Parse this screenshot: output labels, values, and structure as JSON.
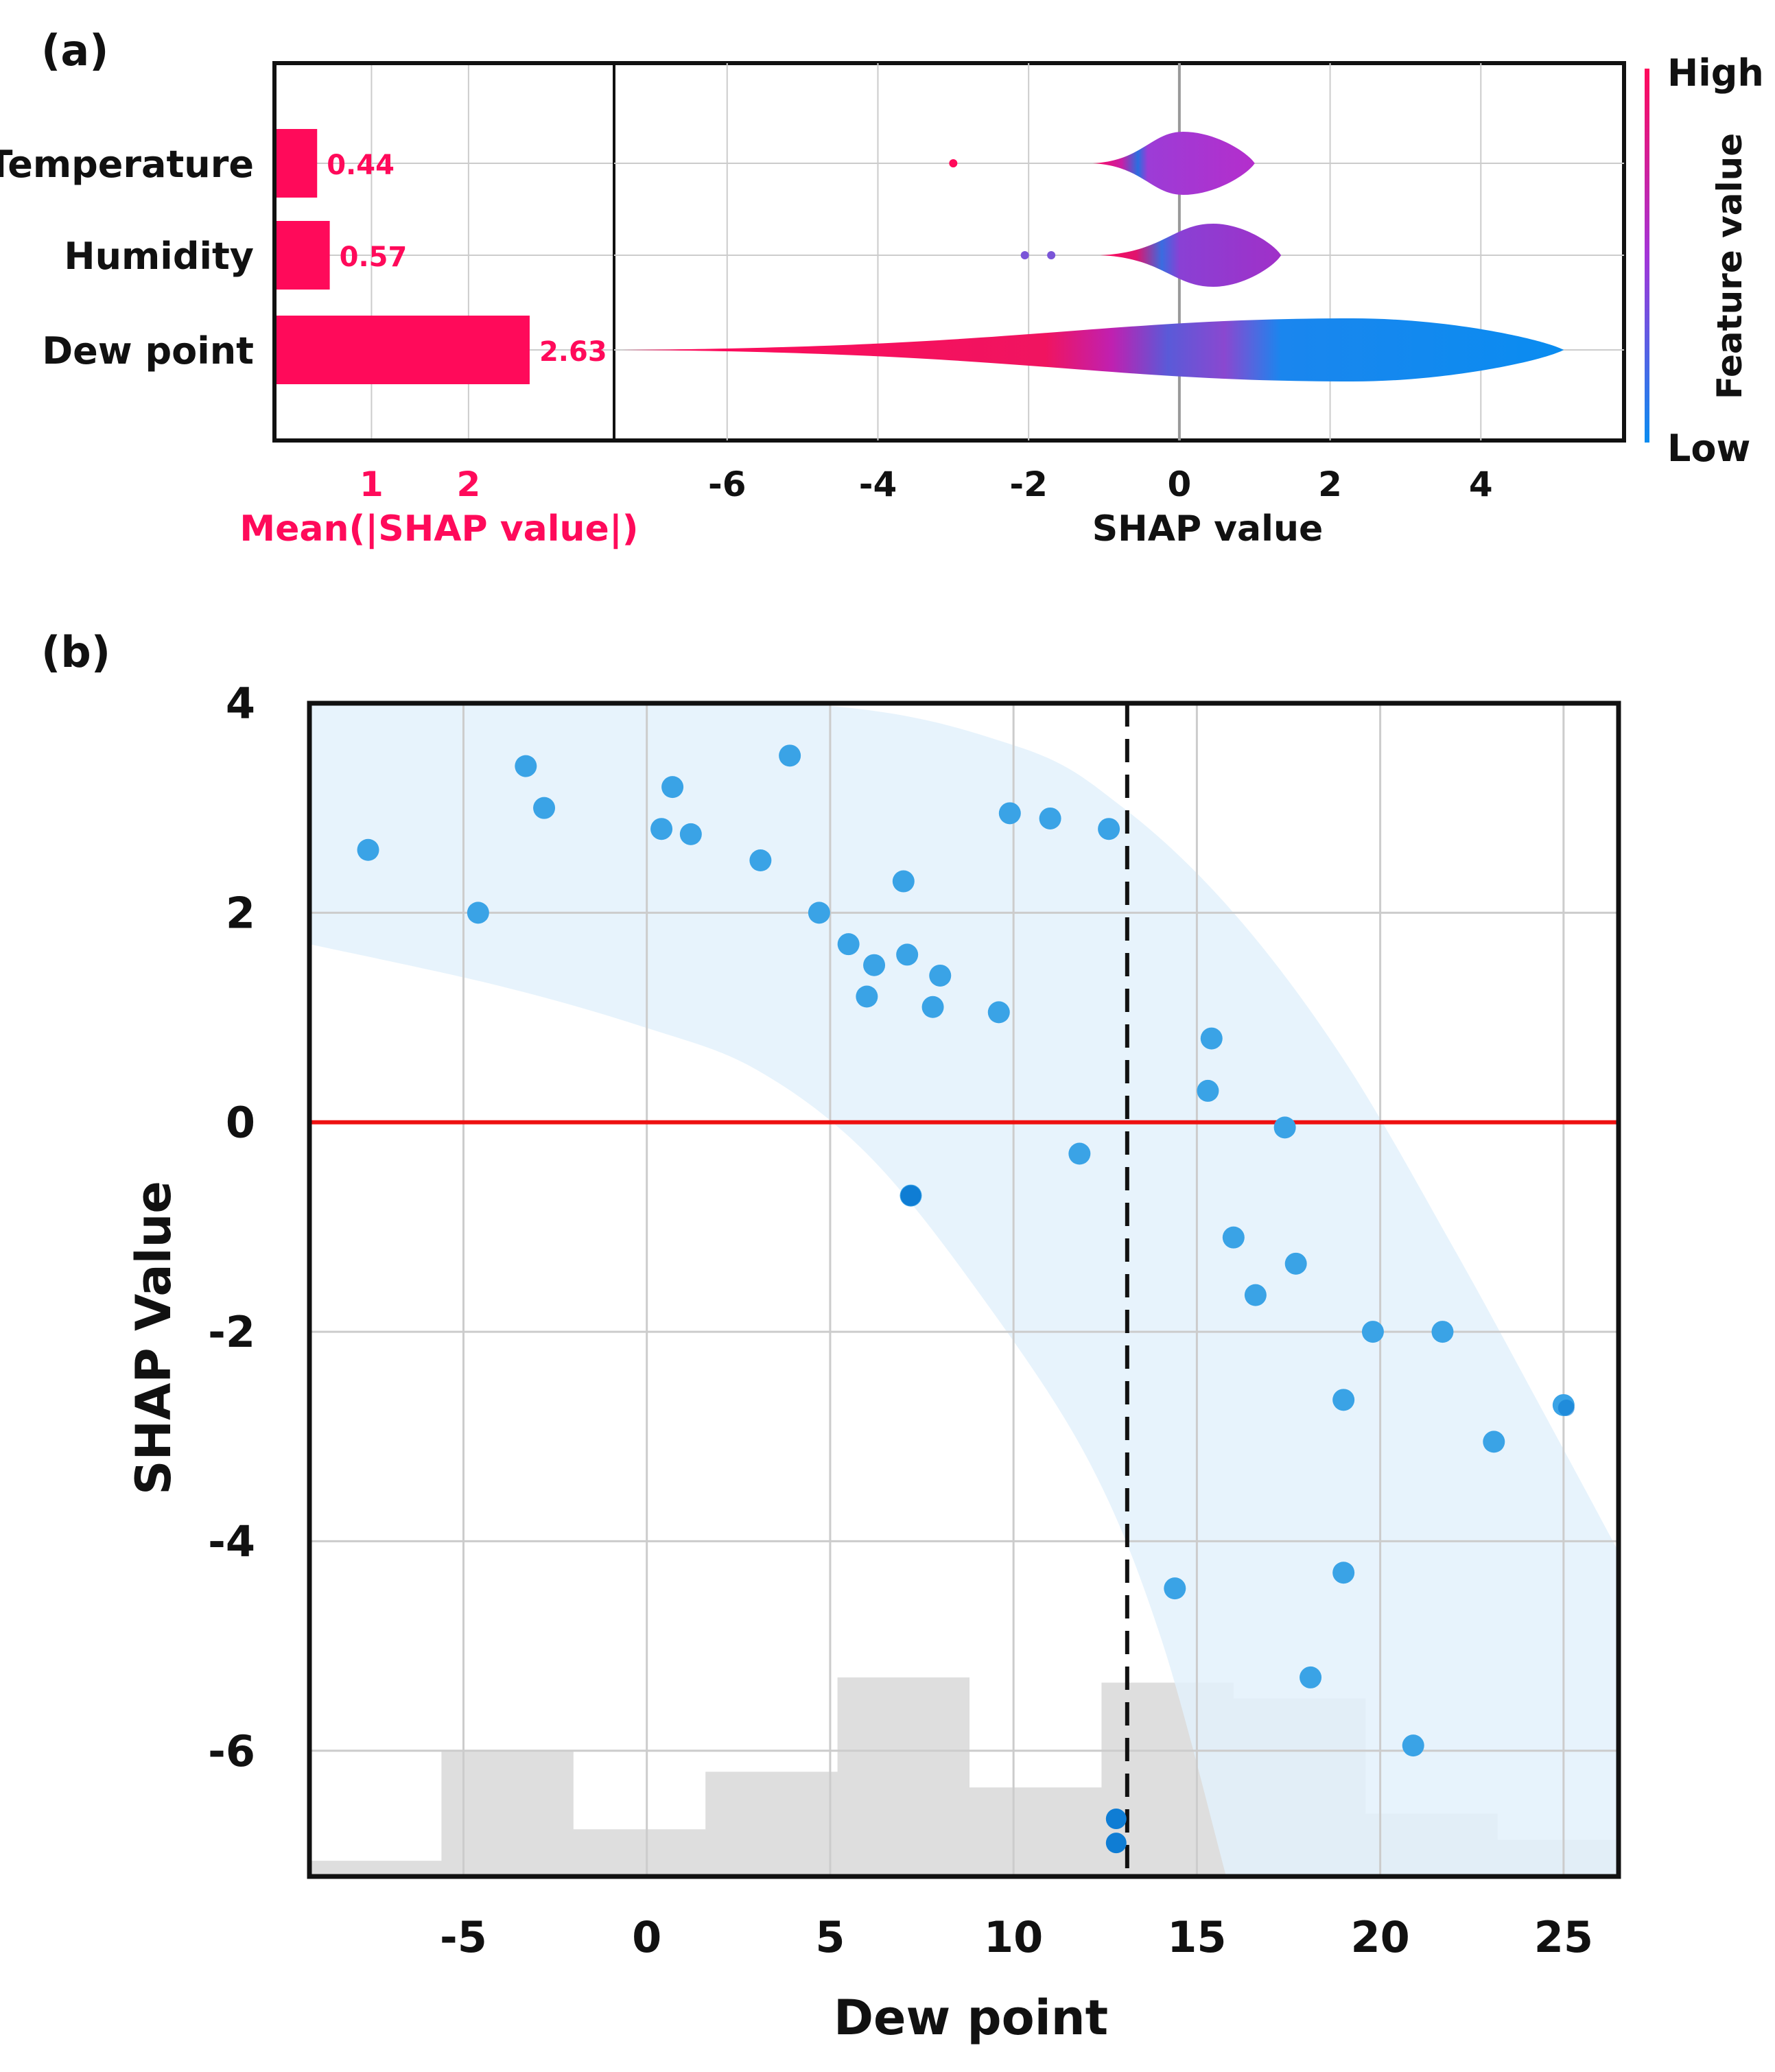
{
  "panel_labels": {
    "a": "(a)",
    "b": "(b)"
  },
  "colors": {
    "pink": "#ff0a5a",
    "magenta_mid": "#b428d2",
    "blue": "#0a8cf0",
    "scatter_point": "#3aa3e6",
    "scatter_dark": "#0f7dd4",
    "band": "#e3f1fb",
    "hist": "#dedede",
    "zero_line": "#ee1111",
    "grid": "#cccccc"
  },
  "chart_data": [
    {
      "id": "a-bar",
      "type": "bar",
      "orientation": "horizontal",
      "title": "",
      "categories": [
        "Temperature",
        "Humidity",
        "Dew point"
      ],
      "values": [
        0.44,
        0.57,
        2.63
      ],
      "value_labels": [
        "0.44",
        "0.57",
        "2.63"
      ],
      "xlabel": "Mean(|SHAP value|)",
      "xticks": [
        1,
        2
      ],
      "xtick_labels": [
        "1",
        "2"
      ],
      "xlim": [
        0,
        3.5
      ]
    },
    {
      "id": "a-violin",
      "type": "violin",
      "title": "",
      "xlabel": "SHAP value",
      "xlim": [
        -7.5,
        5.9
      ],
      "xticks": [
        -6,
        -4,
        -2,
        0,
        2,
        4
      ],
      "xtick_labels": [
        "-6",
        "-4",
        "-2",
        "0",
        "2",
        "4"
      ],
      "colorbar": {
        "label": "Feature value",
        "high": "High",
        "low": "Low"
      },
      "features": [
        {
          "name": "Temperature",
          "min": -1.15,
          "max": 1.0,
          "peak": 0.05,
          "outliers": [
            -3.0
          ]
        },
        {
          "name": "Humidity",
          "min": -1.05,
          "max": 1.35,
          "peak": 0.45,
          "outliers": [
            -2.05,
            -1.7
          ]
        },
        {
          "name": "Dew point",
          "min": -7.4,
          "max": 5.1,
          "peak": 2.3,
          "outliers": []
        }
      ]
    },
    {
      "id": "b-dependence",
      "type": "scatter",
      "title": "",
      "xlabel": "Dew point",
      "ylabel": "SHAP Value",
      "xlim": [
        -9.2,
        26.5
      ],
      "ylim": [
        -7.2,
        4.0
      ],
      "xticks": [
        -5,
        0,
        5,
        10,
        15,
        20,
        25
      ],
      "xtick_labels": [
        "-5",
        "0",
        "5",
        "10",
        "15",
        "20",
        "25"
      ],
      "yticks": [
        4,
        2,
        0,
        -2,
        -4,
        -6
      ],
      "ytick_labels": [
        "4",
        "2",
        "0",
        "-2",
        "-4",
        "-6"
      ],
      "threshold_x": 13.1,
      "zero_line_y": 0,
      "points": [
        [
          -7.6,
          2.6
        ],
        [
          -4.6,
          2.0
        ],
        [
          -3.3,
          3.4
        ],
        [
          -2.8,
          3.0
        ],
        [
          0.4,
          2.8
        ],
        [
          0.7,
          3.2
        ],
        [
          1.2,
          2.75
        ],
        [
          3.1,
          2.5
        ],
        [
          3.9,
          3.5
        ],
        [
          4.7,
          2.0
        ],
        [
          5.5,
          1.7
        ],
        [
          6.2,
          1.5
        ],
        [
          6.0,
          1.2
        ],
        [
          7.0,
          2.3
        ],
        [
          7.1,
          1.6
        ],
        [
          7.8,
          1.1
        ],
        [
          8.0,
          1.4
        ],
        [
          9.6,
          1.05
        ],
        [
          9.9,
          2.95
        ],
        [
          11.0,
          2.9
        ],
        [
          12.6,
          2.8
        ],
        [
          11.8,
          -0.3
        ],
        [
          7.2,
          -0.7
        ],
        [
          15.4,
          0.8
        ],
        [
          15.3,
          0.3
        ],
        [
          17.4,
          -0.05
        ],
        [
          16.0,
          -1.1
        ],
        [
          16.6,
          -1.65
        ],
        [
          17.7,
          -1.35
        ],
        [
          19.8,
          -2.0
        ],
        [
          21.7,
          -2.0
        ],
        [
          19.0,
          -2.65
        ],
        [
          25.0,
          -2.7
        ],
        [
          23.1,
          -3.05
        ],
        [
          14.4,
          -4.45
        ],
        [
          19.0,
          -4.3
        ],
        [
          18.1,
          -5.3
        ],
        [
          20.9,
          -5.95
        ]
      ],
      "dark_points": [
        [
          7.2,
          -0.7
        ],
        [
          12.8,
          -6.65
        ],
        [
          12.8,
          -6.88
        ]
      ],
      "band_upper": [
        [
          -9.2,
          4.0
        ],
        [
          4.0,
          4.0
        ],
        [
          10.0,
          3.6
        ],
        [
          13.0,
          3.0
        ],
        [
          16.0,
          2.0
        ],
        [
          19.0,
          0.6
        ],
        [
          22.0,
          -1.2
        ],
        [
          24.5,
          -2.8
        ],
        [
          26.5,
          -4.1
        ]
      ],
      "band_lower": [
        [
          -9.2,
          1.7
        ],
        [
          -4.0,
          1.3
        ],
        [
          0.0,
          0.9
        ],
        [
          3.0,
          0.5
        ],
        [
          6.0,
          -0.3
        ],
        [
          9.0,
          -1.6
        ],
        [
          12.0,
          -3.2
        ],
        [
          14.0,
          -4.9
        ],
        [
          15.8,
          -7.2
        ]
      ],
      "histogram": {
        "bin_edges": [
          -9.2,
          -5.6,
          -2.0,
          1.6,
          5.2,
          8.8,
          12.4,
          16.0,
          19.6,
          23.2,
          26.8
        ],
        "heights": [
          -7.05,
          -6.0,
          -6.75,
          -6.2,
          -5.3,
          -6.35,
          -5.35,
          -5.5,
          -6.6,
          -6.85
        ]
      }
    }
  ]
}
